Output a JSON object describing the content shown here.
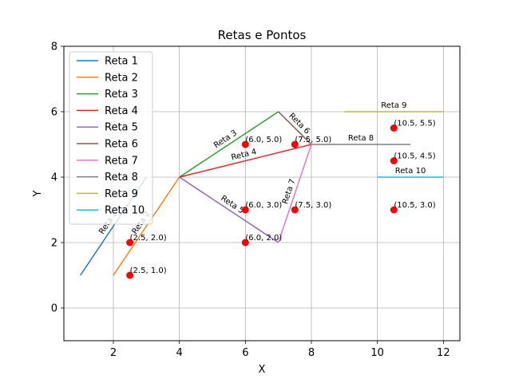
{
  "chart_data": {
    "type": "line",
    "title": "Retas e Pontos",
    "xlabel": "X",
    "ylabel": "Y",
    "xlim": [
      0.5,
      12.5
    ],
    "ylim": [
      -1,
      8
    ],
    "xticks": [
      2,
      4,
      6,
      8,
      10,
      12
    ],
    "yticks": [
      0,
      2,
      4,
      6,
      8
    ],
    "grid": true,
    "legend_position": "top-left",
    "series": [
      {
        "name": "Reta 1",
        "color": "#1f77b4",
        "points": [
          [
            1,
            1
          ],
          [
            3,
            4
          ]
        ],
        "label": "Reta 1"
      },
      {
        "name": "Reta 2",
        "color": "#ff7f0e",
        "points": [
          [
            2,
            1
          ],
          [
            4,
            4
          ]
        ],
        "label": "Reta 2"
      },
      {
        "name": "Reta 3",
        "color": "#2ca02c",
        "points": [
          [
            4,
            4
          ],
          [
            7,
            6
          ]
        ],
        "label": "Reta 3"
      },
      {
        "name": "Reta 4",
        "color": "#d62728",
        "points": [
          [
            4,
            4
          ],
          [
            8,
            5
          ]
        ],
        "label": "Reta 4"
      },
      {
        "name": "Reta 5",
        "color": "#9467bd",
        "points": [
          [
            4,
            4
          ],
          [
            7,
            2
          ]
        ],
        "label": "Reta 5"
      },
      {
        "name": "Reta 6",
        "color": "#8c564b",
        "points": [
          [
            7,
            6
          ],
          [
            8,
            5
          ]
        ],
        "label": "Reta 6"
      },
      {
        "name": "Reta 7",
        "color": "#e377c2",
        "points": [
          [
            7,
            2
          ],
          [
            8,
            5
          ]
        ],
        "label": "Reta 7"
      },
      {
        "name": "Reta 8",
        "color": "#7f7f7f",
        "points": [
          [
            8,
            5
          ],
          [
            11,
            5
          ]
        ],
        "label": "Reta 8"
      },
      {
        "name": "Reta 9",
        "color": "#bcbd22",
        "points": [
          [
            9,
            6
          ],
          [
            12,
            6
          ]
        ],
        "label": "Reta 9"
      },
      {
        "name": "Reta 10",
        "color": "#17becf",
        "points": [
          [
            10,
            4
          ],
          [
            12,
            4
          ]
        ],
        "label": "Reta 10"
      }
    ],
    "points": [
      {
        "x": 2.5,
        "y": 1.0,
        "label": "(2.5, 1.0)"
      },
      {
        "x": 2.5,
        "y": 2.0,
        "label": "(2.5, 2.0)"
      },
      {
        "x": 6.0,
        "y": 2.0,
        "label": "(6.0, 2.0)"
      },
      {
        "x": 6.0,
        "y": 3.0,
        "label": "(6.0, 3.0)"
      },
      {
        "x": 6.0,
        "y": 5.0,
        "label": "(6.0, 5.0)"
      },
      {
        "x": 7.5,
        "y": 3.0,
        "label": "(7.5, 3.0)"
      },
      {
        "x": 7.5,
        "y": 5.0,
        "label": "(7.5, 5.0)"
      },
      {
        "x": 10.5,
        "y": 3.0,
        "label": "(10.5, 3.0)"
      },
      {
        "x": 10.5,
        "y": 4.5,
        "label": "(10.5, 4.5)"
      },
      {
        "x": 10.5,
        "y": 5.5,
        "label": "(10.5, 5.5)"
      }
    ],
    "point_color": "#ff0000"
  }
}
